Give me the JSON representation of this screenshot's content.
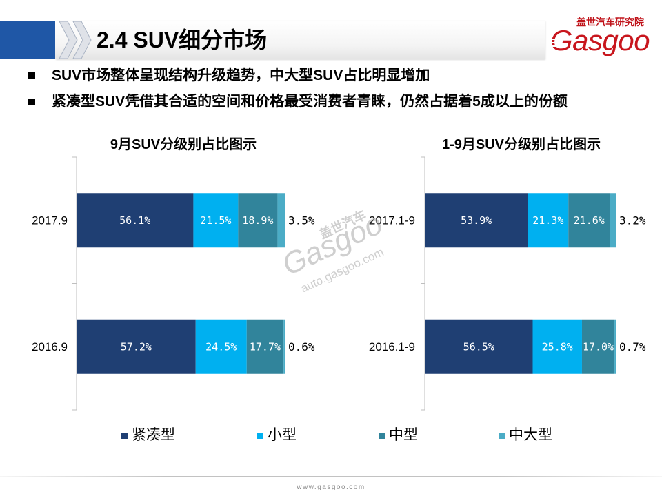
{
  "header": {
    "title": "2.4 SUV细分市场",
    "logo_cn": "盖世汽车研究院",
    "logo_en": "Gasgoo",
    "accent_color": "#1F57A6"
  },
  "bullets": [
    "SUV市场整体呈现结构升级趋势，中大型SUV占比明显增加",
    "紧凑型SUV凭借其合适的空间和价格最受消费者青睐，仍然占据着5成以上的份额"
  ],
  "chart_data": [
    {
      "type": "bar",
      "orientation": "horizontal",
      "stacked": true,
      "title": "9月SUV分级别占比图示",
      "xlabel": "",
      "ylabel": "",
      "xlim": [
        0,
        100
      ],
      "grid": false,
      "legend": "bottom",
      "categories": [
        "2017.9",
        "2016.9"
      ],
      "series": [
        {
          "name": "紧凑型",
          "color": "#1F3F73",
          "values": [
            56.1,
            57.2
          ],
          "labels": [
            "56.1%",
            "57.2%"
          ]
        },
        {
          "name": "小型",
          "color": "#00B0F0",
          "values": [
            21.5,
            24.5
          ],
          "labels": [
            "21.5%",
            "24.5%"
          ]
        },
        {
          "name": "中型",
          "color": "#31849B",
          "values": [
            18.9,
            17.7
          ],
          "labels": [
            "18.9%",
            "17.7%"
          ]
        },
        {
          "name": "中大型",
          "color": "#4BACC6",
          "values": [
            3.5,
            0.6
          ],
          "labels": [
            "3.5%",
            "0.6%"
          ]
        }
      ]
    },
    {
      "type": "bar",
      "orientation": "horizontal",
      "stacked": true,
      "title": "1-9月SUV分级别占比图示",
      "xlabel": "",
      "ylabel": "",
      "xlim": [
        0,
        100
      ],
      "grid": false,
      "legend": "bottom",
      "categories": [
        "2017.1-9",
        "2016.1-9"
      ],
      "series": [
        {
          "name": "紧凑型",
          "color": "#1F3F73",
          "values": [
            53.9,
            56.5
          ],
          "labels": [
            "53.9%",
            "56.5%"
          ]
        },
        {
          "name": "小型",
          "color": "#00B0F0",
          "values": [
            21.3,
            25.8
          ],
          "labels": [
            "21.3%",
            "25.8%"
          ]
        },
        {
          "name": "中型",
          "color": "#31849B",
          "values": [
            21.6,
            17.0
          ],
          "labels": [
            "21.6%",
            "17.0%"
          ]
        },
        {
          "name": "中大型",
          "color": "#4BACC6",
          "values": [
            3.2,
            0.7
          ],
          "labels": [
            "3.2%",
            "0.7%"
          ]
        }
      ]
    }
  ],
  "watermark": {
    "cn": "盖世汽车",
    "en": "Gasgoo",
    "url": "auto.gasgoo.com"
  },
  "footer": {
    "url": "www.gasgoo.com"
  }
}
